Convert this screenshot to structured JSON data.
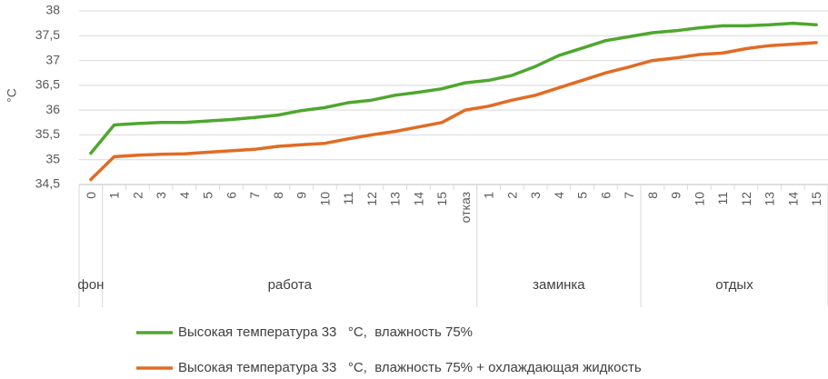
{
  "chart_data": {
    "type": "line",
    "ylabel": "°C",
    "xlabel": "",
    "ylim": [
      34.5,
      38
    ],
    "yticks": [
      "34,5",
      "35",
      "35,5",
      "36",
      "36,5",
      "37",
      "37,5",
      "38"
    ],
    "categories": [
      "0",
      "1",
      "2",
      "3",
      "4",
      "5",
      "6",
      "7",
      "8",
      "9",
      "10",
      "11",
      "12",
      "13",
      "14",
      "15",
      "отказ",
      "1",
      "2",
      "3",
      "4",
      "5",
      "6",
      "7",
      "8",
      "9",
      "10",
      "11",
      "12",
      "13",
      "14",
      "15"
    ],
    "groups": [
      {
        "label": "фон",
        "start": 0,
        "end": 0
      },
      {
        "label": "работа",
        "start": 1,
        "end": 16
      },
      {
        "label": "заминка",
        "start": 17,
        "end": 23
      },
      {
        "label": "отдых",
        "start": 24,
        "end": 31
      }
    ],
    "grid": true,
    "legend_position": "bottom",
    "series": [
      {
        "name": "Высокая температура 33   °C,  влажность 75%",
        "color": "#4ea72e",
        "values": [
          35.13,
          35.7,
          35.73,
          35.75,
          35.75,
          35.78,
          35.81,
          35.85,
          35.9,
          35.99,
          36.05,
          36.15,
          36.2,
          36.3,
          36.36,
          36.43,
          36.55,
          36.6,
          36.7,
          36.88,
          37.1,
          37.25,
          37.4,
          37.48,
          37.56,
          37.6,
          37.66,
          37.7,
          37.7,
          37.72,
          37.75,
          37.72
        ]
      },
      {
        "name": "Высокая температура 33   °C,  влажность 75% + охлаждающая жидкость",
        "color": "#e26b24",
        "values": [
          34.6,
          35.06,
          35.09,
          35.11,
          35.12,
          35.15,
          35.18,
          35.21,
          35.27,
          35.3,
          35.33,
          35.42,
          35.5,
          35.57,
          35.66,
          35.75,
          36.0,
          36.08,
          36.2,
          36.3,
          36.45,
          36.6,
          36.75,
          36.87,
          37.0,
          37.05,
          37.12,
          37.15,
          37.24,
          37.3,
          37.33,
          37.36
        ]
      }
    ]
  }
}
